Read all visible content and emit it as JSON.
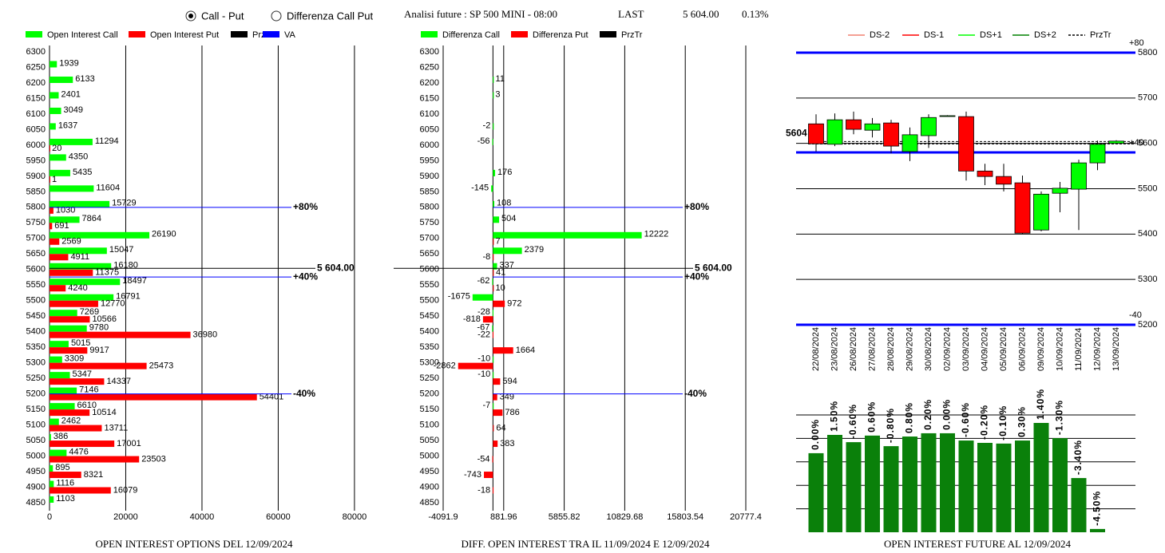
{
  "header": {
    "radio_options": [
      {
        "label": "Call - Put",
        "selected": true
      },
      {
        "label": "Differenza Call Put",
        "selected": false
      }
    ],
    "title": "Analisi future : SP 500 MINI - 08:00",
    "last_label": "LAST",
    "last_value": "5 604.00",
    "change": "0.13%"
  },
  "chart_data": [
    {
      "type": "bar",
      "orientation": "horizontal",
      "title": "OPEN INTEREST OPTIONS DEL 12/09/2024",
      "categories": [
        "6300",
        "6250",
        "6200",
        "6150",
        "6100",
        "6050",
        "6000",
        "5950",
        "5900",
        "5850",
        "5800",
        "5750",
        "5700",
        "5650",
        "5600",
        "5550",
        "5500",
        "5450",
        "5400",
        "5350",
        "5300",
        "5250",
        "5200",
        "5150",
        "5100",
        "5050",
        "5000",
        "4950",
        "4900",
        "4850"
      ],
      "series": [
        {
          "name": "Open Interest Call",
          "color": "#00ff00",
          "values": [
            null,
            1939,
            6133,
            2401,
            3049,
            1637,
            11294,
            4350,
            5435,
            11604,
            15729,
            7864,
            26190,
            15047,
            16180,
            18497,
            16791,
            7269,
            9780,
            5015,
            3309,
            5347,
            7146,
            6610,
            2462,
            386,
            4476,
            895,
            1116,
            1103
          ]
        },
        {
          "name": "Open Interest Put",
          "color": "#ff0000",
          "values": [
            null,
            null,
            null,
            null,
            null,
            null,
            20,
            null,
            1,
            null,
            1030,
            691,
            2569,
            4911,
            11375,
            4240,
            12770,
            10566,
            36980,
            9917,
            25473,
            14337,
            54401,
            10514,
            13711,
            17001,
            23503,
            8321,
            16079,
            null
          ]
        }
      ],
      "legend_extra": [
        {
          "name": "PrzTr",
          "color": "#000000"
        },
        {
          "name": "VA",
          "color": "#0000ff"
        }
      ],
      "annotations": [
        {
          "label": "+80%",
          "value": 5800,
          "color": "#0000ff"
        },
        {
          "label": "5 604.00",
          "value": 5604,
          "color": "#000000"
        },
        {
          "label": "+40%",
          "value": 5576,
          "color": "#0000ff"
        },
        {
          "label": "-40%",
          "value": 5200,
          "color": "#0000ff"
        }
      ],
      "xlim": [
        0,
        84000
      ],
      "xticks": [
        0,
        20000,
        40000,
        60000,
        80000
      ],
      "grid": true
    },
    {
      "type": "bar",
      "orientation": "horizontal",
      "title": "DIFF. OPEN INTEREST TRA IL 11/09/2024 E 12/09/2024",
      "categories": [
        "6300",
        "6250",
        "6200",
        "6150",
        "6100",
        "6050",
        "6000",
        "5950",
        "5900",
        "5850",
        "5800",
        "5750",
        "5700",
        "5650",
        "5600",
        "5550",
        "5500",
        "5450",
        "5400",
        "5350",
        "5300",
        "5250",
        "5200",
        "5150",
        "5100",
        "5050",
        "5000",
        "4950",
        "4900",
        "4850"
      ],
      "series": [
        {
          "name": "Differenza Call",
          "color": "#00ff00",
          "values": [
            null,
            null,
            11,
            3,
            null,
            -2,
            -56,
            null,
            176,
            -145,
            108,
            504,
            12222,
            2379,
            337,
            -62,
            -1675,
            -28,
            -67,
            null,
            -10,
            -10,
            null,
            -7,
            null,
            null,
            null,
            null,
            null,
            null
          ]
        },
        {
          "name": "Differenza Put",
          "color": "#ff0000",
          "values": [
            null,
            null,
            null,
            null,
            null,
            null,
            null,
            null,
            null,
            null,
            null,
            null,
            7,
            -8,
            41,
            10,
            972,
            -818,
            -22,
            1664,
            -2862,
            594,
            349,
            786,
            64,
            383,
            -54,
            -743,
            -18,
            null
          ]
        }
      ],
      "legend_extra": [
        {
          "name": "PrzTr",
          "color": "#000000"
        }
      ],
      "annotations": [
        {
          "label": "+80%",
          "value": 5800,
          "color": "#0000ff"
        },
        {
          "label": "5 604.00",
          "value": 5604,
          "color": "#000000"
        },
        {
          "label": "+40%",
          "value": 5576,
          "color": "#0000ff"
        },
        {
          "label": "-40%",
          "value": 5200,
          "color": "#0000ff"
        }
      ],
      "xlim": [
        -4091.9,
        20777.4
      ],
      "xticks": [
        -4091.9,
        881.96,
        5855.82,
        10829.68,
        15803.54,
        20777.4
      ],
      "grid": true
    },
    {
      "type": "candlestick",
      "categories": [
        "22/08/2024",
        "23/08/2024",
        "26/08/2024",
        "27/08/2024",
        "28/08/2024",
        "29/08/2024",
        "30/08/2024",
        "02/09/2024",
        "03/09/2024",
        "04/09/2024",
        "05/09/2024",
        "06/09/2024",
        "09/09/2024",
        "10/09/2024",
        "11/09/2024",
        "12/09/2024",
        "13/09/2024"
      ],
      "open": [
        5643,
        5598,
        5652,
        5629,
        5645,
        5582,
        5617,
        5660,
        5659,
        5539,
        5527,
        5513,
        5409,
        5490,
        5499,
        5557,
        5600
      ],
      "close": [
        5599,
        5652,
        5631,
        5643,
        5594,
        5619,
        5657,
        5661,
        5539,
        5527,
        5510,
        5402,
        5488,
        5501,
        5557,
        5598,
        5605
      ],
      "high": [
        5664,
        5666,
        5670,
        5656,
        5652,
        5635,
        5664,
        5662,
        5670,
        5555,
        5555,
        5529,
        5494,
        5515,
        5564,
        5606,
        5607
      ],
      "low": [
        5582,
        5594,
        5620,
        5613,
        5578,
        5561,
        5590,
        5660,
        5518,
        5508,
        5494,
        5400,
        5406,
        5448,
        5409,
        5541,
        5600
      ],
      "up_color": "#00ff00",
      "down_color": "#ff0000",
      "legend": [
        {
          "name": "DS-2",
          "color": "#f08070"
        },
        {
          "name": "DS-1",
          "color": "#ff0000"
        },
        {
          "name": "DS+1",
          "color": "#00ff00"
        },
        {
          "name": "DS+2",
          "color": "#008000"
        },
        {
          "name": "PrzTr",
          "color": "#000000",
          "dash": true
        }
      ],
      "annotations": [
        {
          "label": "+80",
          "value": 5800,
          "color": "#0000ff"
        },
        {
          "label": "+40",
          "value": 5580,
          "color": "#0000ff"
        },
        {
          "label": "-40",
          "value": 5200,
          "color": "#0000ff"
        }
      ],
      "price": {
        "label": "5604",
        "value": 5604
      },
      "ylim": [
        5200,
        5800
      ],
      "yticks": [
        5200,
        5300,
        5400,
        5500,
        5600,
        5700,
        5800
      ],
      "grid": true
    },
    {
      "type": "bar",
      "orientation": "vertical",
      "title": "OPEN INTEREST FUTURE AL 12/09/2024",
      "values": [
        3.37,
        4.15,
        3.84,
        4.12,
        3.67,
        4.08,
        4.22,
        4.22,
        3.91,
        3.81,
        3.78,
        3.91,
        4.66,
        4.01,
        2.31,
        0.14
      ],
      "change_labels": [
        "0.00%",
        "1.50%",
        "-0.60%",
        "0.60%",
        "-0.80%",
        "0.80%",
        "0.20%",
        "0.00%",
        "-0.60%",
        "-0.20%",
        "-0.10%",
        "0.30%",
        "1.40%",
        "-1.30%",
        "-3.40%",
        "-4.50%"
      ],
      "color": "#0a800a",
      "ylim": [
        0,
        5
      ],
      "ygrid": [
        1,
        2,
        3,
        4,
        5
      ]
    }
  ]
}
